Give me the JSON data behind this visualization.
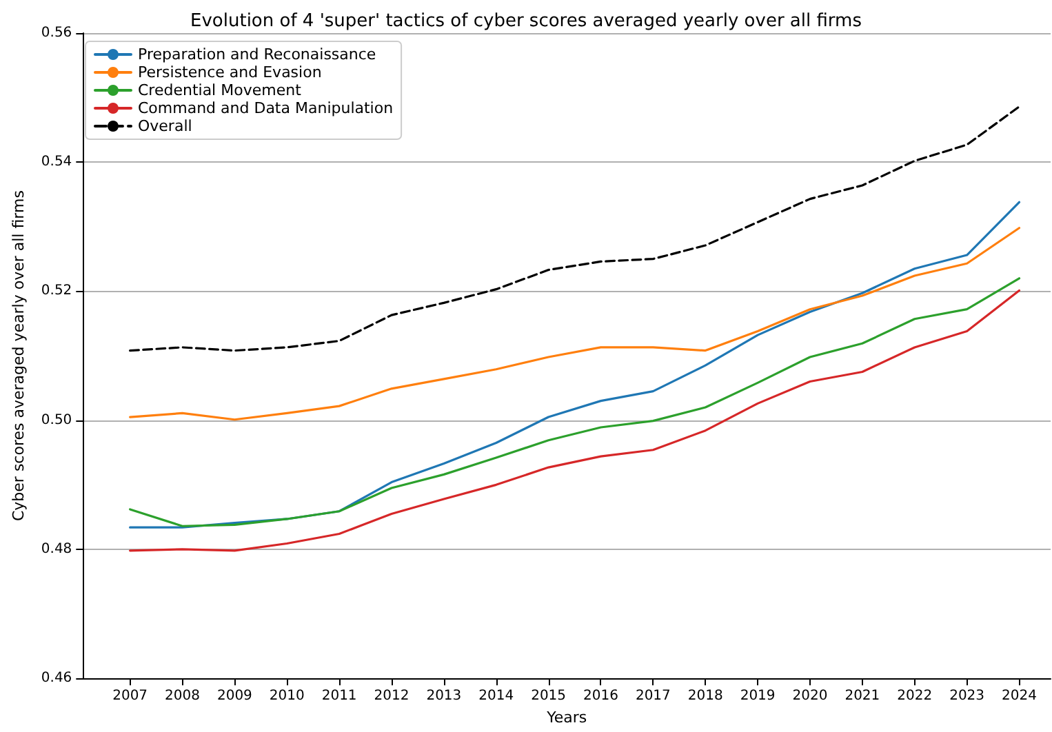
{
  "chart_data": {
    "type": "line",
    "title": "Evolution of 4 'super' tactics of cyber scores averaged yearly over all firms",
    "xlabel": "Years",
    "ylabel": "Cyber scores averaged yearly over all firms",
    "x": [
      2007,
      2008,
      2009,
      2010,
      2011,
      2012,
      2013,
      2014,
      2015,
      2016,
      2017,
      2018,
      2019,
      2020,
      2021,
      2022,
      2023,
      2024
    ],
    "xlim": [
      2006.1,
      2024.6
    ],
    "xticks": [
      2007,
      2008,
      2009,
      2010,
      2011,
      2012,
      2013,
      2014,
      2015,
      2016,
      2017,
      2018,
      2019,
      2020,
      2021,
      2022,
      2023,
      2024
    ],
    "ylim": [
      0.46,
      0.56
    ],
    "yticks": [
      {
        "value": 0.46,
        "label": "0.46"
      },
      {
        "value": 0.48,
        "label": "0.48"
      },
      {
        "value": 0.5,
        "label": "0.50"
      },
      {
        "value": 0.52,
        "label": "0.52"
      },
      {
        "value": 0.54,
        "label": "0.54"
      },
      {
        "value": 0.56,
        "label": "0.56"
      }
    ],
    "grid": "y",
    "legend": "top left",
    "marker": "none",
    "series": [
      {
        "name": "Preparation and Reconaissance",
        "color": "#1f77b4",
        "values": [
          0.4834,
          0.4834,
          0.4841,
          0.4847,
          0.4859,
          0.4904,
          0.4933,
          0.4965,
          0.5005,
          0.503,
          0.5045,
          0.5085,
          0.5132,
          0.5168,
          0.5197,
          0.5235,
          0.5256,
          0.5338
        ]
      },
      {
        "name": "Persistence and Evasion",
        "color": "#ff7f0e",
        "values": [
          0.5005,
          0.5011,
          0.5001,
          0.5011,
          0.5022,
          0.5049,
          0.5064,
          0.5079,
          0.5098,
          0.5113,
          0.5113,
          0.5108,
          0.5138,
          0.5172,
          0.5193,
          0.5224,
          0.5243,
          0.5298
        ]
      },
      {
        "name": "Credential Movement",
        "color": "#2ca02c",
        "values": [
          0.4862,
          0.4836,
          0.4838,
          0.4847,
          0.4859,
          0.4895,
          0.4916,
          0.4942,
          0.4969,
          0.4989,
          0.4999,
          0.502,
          0.5058,
          0.5098,
          0.5119,
          0.5157,
          0.5172,
          0.522
        ]
      },
      {
        "name": "Command and Data Manipulation",
        "color": "#d62728",
        "values": [
          0.4798,
          0.48,
          0.4798,
          0.4809,
          0.4824,
          0.4855,
          0.4878,
          0.49,
          0.4927,
          0.4944,
          0.4954,
          0.4984,
          0.5026,
          0.506,
          0.5075,
          0.5113,
          0.5138,
          0.5201
        ]
      },
      {
        "name": "Overall",
        "color": "#000000",
        "line_style": "dashed",
        "values": [
          0.5108,
          0.5113,
          0.5108,
          0.5113,
          0.5123,
          0.5163,
          0.5182,
          0.5203,
          0.5233,
          0.5246,
          0.525,
          0.5271,
          0.5307,
          0.5343,
          0.5364,
          0.5402,
          0.5427,
          0.5486
        ]
      }
    ]
  }
}
